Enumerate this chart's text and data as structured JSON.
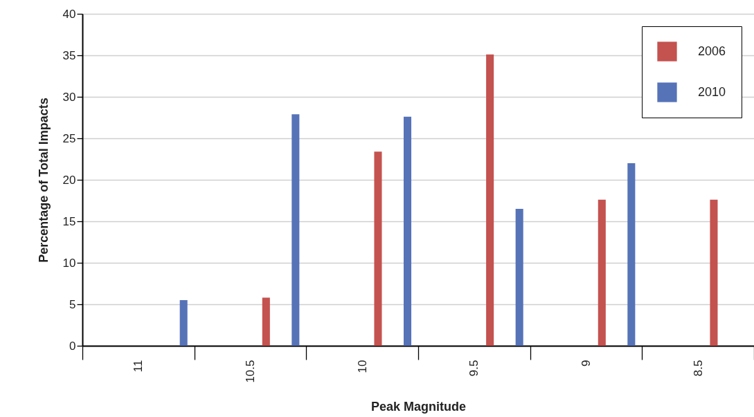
{
  "chart_data": {
    "type": "bar",
    "xlabel": "Peak Magnitude",
    "ylabel": "Percentage of Total Impacts",
    "categories": [
      "11",
      "10.5",
      "10",
      "9.5",
      "9",
      "8.5"
    ],
    "series": [
      {
        "name": "2006",
        "color": "#c4524f",
        "values": [
          null,
          5.8,
          23.4,
          35.1,
          17.6,
          17.6
        ]
      },
      {
        "name": "2010",
        "color": "#5673b8",
        "values": [
          5.5,
          27.9,
          27.6,
          16.5,
          22.0,
          null
        ]
      }
    ],
    "ylim": [
      0,
      40
    ],
    "yticks": [
      0,
      5,
      10,
      15,
      20,
      25,
      30,
      35,
      40
    ],
    "grid": "y",
    "legend": "top right"
  }
}
